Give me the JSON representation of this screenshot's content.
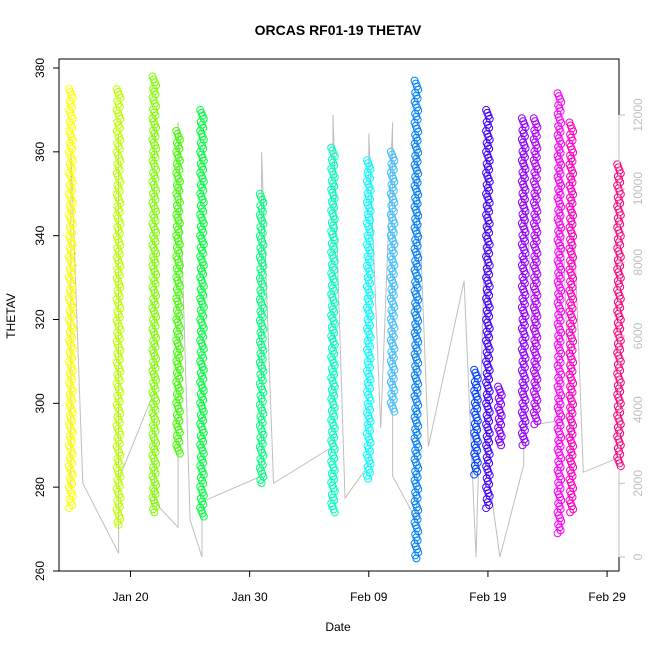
{
  "chart_data": {
    "type": "scatter",
    "title": "ORCAS RF01-19 THETAV",
    "xlabel": "Date",
    "ylabel": "THETAV",
    "x_axis": {
      "unit": "date",
      "range": [
        "2016-01-14",
        "2016-03-01"
      ],
      "ticks": [
        {
          "date": "2016-01-20",
          "label": "Jan 20"
        },
        {
          "date": "2016-01-30",
          "label": "Jan 30"
        },
        {
          "date": "2016-02-09",
          "label": "Feb 09"
        },
        {
          "date": "2016-02-19",
          "label": "Feb 19"
        },
        {
          "date": "2016-02-29",
          "label": "Feb 29"
        }
      ]
    },
    "y_axis": {
      "range": [
        260,
        380
      ],
      "ticks": [
        260,
        280,
        300,
        320,
        340,
        360,
        380
      ]
    },
    "y2_axis": {
      "range": [
        0,
        12000
      ],
      "ticks": [
        0,
        2000,
        4000,
        6000,
        8000,
        10000,
        12000
      ],
      "color": "#bfbfbf"
    },
    "series": [
      {
        "date": "2016-01-15",
        "ymin": 275,
        "ymax": 375,
        "color": "#FFFF00"
      },
      {
        "date": "2016-01-19",
        "ymin": 271,
        "ymax": 375,
        "color": "#BFFF00"
      },
      {
        "date": "2016-01-22",
        "ymin": 274,
        "ymax": 378,
        "color": "#80FF00"
      },
      {
        "date": "2016-01-24",
        "ymin": 288,
        "ymax": 365,
        "color": "#40FF00"
      },
      {
        "date": "2016-01-26",
        "ymin": 273,
        "ymax": 370,
        "color": "#00FF40"
      },
      {
        "date": "2016-01-31",
        "ymin": 281,
        "ymax": 350,
        "color": "#00FF80"
      },
      {
        "date": "2016-02-06",
        "ymin": 274,
        "ymax": 361,
        "color": "#00FFBF"
      },
      {
        "date": "2016-02-09",
        "ymin": 282,
        "ymax": 358,
        "color": "#00FFFF"
      },
      {
        "date": "2016-02-11",
        "ymin": 298,
        "ymax": 360,
        "color": "#40BFFF"
      },
      {
        "date": "2016-02-13",
        "ymin": 263,
        "ymax": 377,
        "color": "#0080FF"
      },
      {
        "date": "2016-02-18",
        "ymin": 283,
        "ymax": 308,
        "color": "#0040FF"
      },
      {
        "date": "2016-02-19",
        "ymin": 275,
        "ymax": 370,
        "color": "#4000FF"
      },
      {
        "date": "2016-02-20",
        "ymin": 290,
        "ymax": 304,
        "color": "#8000FF"
      },
      {
        "date": "2016-02-22",
        "ymin": 290,
        "ymax": 368,
        "color": "#9000FF"
      },
      {
        "date": "2016-02-23",
        "ymin": 295,
        "ymax": 368,
        "color": "#B000FF"
      },
      {
        "date": "2016-02-25",
        "ymin": 269,
        "ymax": 374,
        "color": "#FF00FF"
      },
      {
        "date": "2016-02-26",
        "ymin": 274,
        "ymax": 367,
        "color": "#FF00BF"
      },
      {
        "date": "2016-03-01",
        "ymin": 285,
        "ymax": 357,
        "color": "#FF0080"
      }
    ],
    "altitude_trace": {
      "axis": "y2",
      "color": "#bfbfbf",
      "points": [
        [
          "2016-01-15",
          1800
        ],
        [
          "2016-01-15",
          11000
        ],
        [
          "2016-01-16",
          2000
        ],
        [
          "2016-01-19",
          100
        ],
        [
          "2016-01-19",
          11500
        ],
        [
          "2016-01-19",
          2100
        ],
        [
          "2016-01-22",
          4500
        ],
        [
          "2016-01-22",
          12000
        ],
        [
          "2016-01-22",
          1500
        ],
        [
          "2016-01-24",
          800
        ],
        [
          "2016-01-24",
          11800
        ],
        [
          "2016-01-25",
          1000
        ],
        [
          "2016-01-26",
          0
        ],
        [
          "2016-01-26",
          11000
        ],
        [
          "2016-01-26",
          1500
        ],
        [
          "2016-01-31",
          2200
        ],
        [
          "2016-01-31",
          11000
        ],
        [
          "2016-02-01",
          2000
        ],
        [
          "2016-02-06",
          3000
        ],
        [
          "2016-02-06",
          12000
        ],
        [
          "2016-02-07",
          1600
        ],
        [
          "2016-02-09",
          2500
        ],
        [
          "2016-02-09",
          11500
        ],
        [
          "2016-02-10",
          3500
        ],
        [
          "2016-02-11",
          11800
        ],
        [
          "2016-02-11",
          2200
        ],
        [
          "2016-02-13",
          1000
        ],
        [
          "2016-02-13",
          11500
        ],
        [
          "2016-02-14",
          3000
        ],
        [
          "2016-02-17",
          7500
        ],
        [
          "2016-02-18",
          0
        ],
        [
          "2016-02-19",
          11400
        ],
        [
          "2016-02-19",
          2400
        ],
        [
          "2016-02-20",
          0
        ],
        [
          "2016-02-22",
          2500
        ],
        [
          "2016-02-22",
          11500
        ],
        [
          "2016-02-23",
          4200
        ],
        [
          "2016-02-23",
          11800
        ],
        [
          "2016-02-23",
          3600
        ],
        [
          "2016-02-25",
          3700
        ],
        [
          "2016-02-25",
          11800
        ],
        [
          "2016-02-26",
          2200
        ],
        [
          "2016-02-26",
          11000
        ],
        [
          "2016-02-27",
          2300
        ],
        [
          "2016-03-01",
          2700
        ],
        [
          "2016-03-01",
          11400
        ]
      ]
    },
    "grid": false,
    "legend": "none"
  }
}
